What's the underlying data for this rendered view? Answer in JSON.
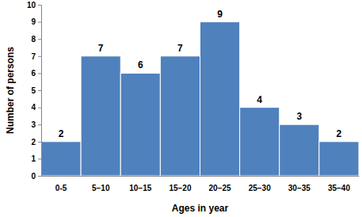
{
  "chart_data": {
    "type": "bar",
    "x_label": "Ages in year",
    "y_label": "Number of persons",
    "categories": [
      "0-5",
      "5−10",
      "10−15",
      "15−20",
      "20−25",
      "25−30",
      "30−35",
      "35−40"
    ],
    "values": [
      2,
      7,
      6,
      7,
      9,
      4,
      3,
      2
    ],
    "color": "#4f81bd",
    "ylim": [
      0,
      10
    ],
    "yticks": [
      0,
      1,
      2,
      3,
      4,
      5,
      6,
      7,
      8,
      9,
      10
    ],
    "grid": false,
    "data_labels": true
  }
}
